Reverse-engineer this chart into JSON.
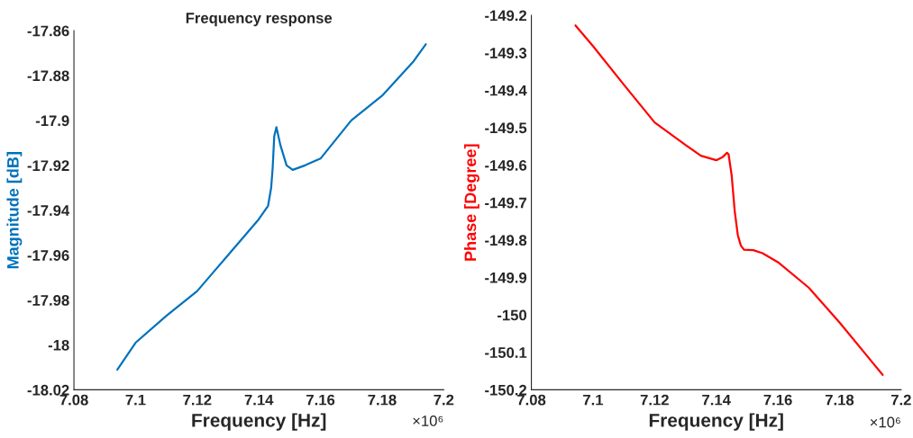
{
  "chart_data": [
    {
      "type": "line",
      "title": "Frequency response",
      "xlabel": "Frequency [Hz]",
      "ylabel": "Magnitude [dB]",
      "xlim": [
        7.08,
        7.2
      ],
      "xticks": [
        7.08,
        7.1,
        7.12,
        7.14,
        7.16,
        7.18,
        7.2
      ],
      "ylim": [
        -18.02,
        -17.86
      ],
      "yticks": [
        -18.02,
        -18,
        -17.98,
        -17.96,
        -17.94,
        -17.92,
        -17.9,
        -17.88,
        -17.86
      ],
      "grid": false,
      "annotations": [
        "×10⁶"
      ],
      "series": [
        {
          "color": "#0072bd",
          "x": [
            7.0941,
            7.1,
            7.11,
            7.12,
            7.125,
            7.13,
            7.135,
            7.14,
            7.143,
            7.144,
            7.1445,
            7.145,
            7.1457,
            7.147,
            7.149,
            7.151,
            7.155,
            7.16,
            7.17,
            7.18,
            7.19,
            7.1942
          ],
          "values": [
            -18.011,
            -17.999,
            -17.987,
            -17.976,
            -17.968,
            -17.96,
            -17.952,
            -17.944,
            -17.938,
            -17.93,
            -17.921,
            -17.907,
            -17.903,
            -17.911,
            -17.92,
            -17.922,
            -17.92,
            -17.917,
            -17.9,
            -17.889,
            -17.874,
            -17.866
          ]
        }
      ]
    },
    {
      "type": "line",
      "xlabel": "Frequency [Hz]",
      "ylabel": "Phase [Degree]",
      "xlim": [
        7.08,
        7.2
      ],
      "xticks": [
        7.08,
        7.1,
        7.12,
        7.14,
        7.16,
        7.18,
        7.2
      ],
      "ylim": [
        -150.2,
        -149.2
      ],
      "yticks": [
        -150.2,
        -150.1,
        -150,
        -149.9,
        -149.8,
        -149.7,
        -149.6,
        -149.5,
        -149.4,
        -149.3,
        -149.2
      ],
      "grid": false,
      "annotations": [
        "×10⁶"
      ],
      "series": [
        {
          "color": "#ff0000",
          "x": [
            7.0943,
            7.1,
            7.11,
            7.12,
            7.13,
            7.135,
            7.14,
            7.142,
            7.1435,
            7.144,
            7.145,
            7.146,
            7.147,
            7.148,
            7.149,
            7.152,
            7.155,
            7.16,
            7.17,
            7.18,
            7.19,
            7.194
          ],
          "values": [
            -149.227,
            -149.282,
            -149.385,
            -149.486,
            -149.546,
            -149.575,
            -149.587,
            -149.579,
            -149.567,
            -149.571,
            -149.627,
            -149.723,
            -149.787,
            -149.815,
            -149.826,
            -149.827,
            -149.835,
            -149.859,
            -149.927,
            -150.02,
            -150.12,
            -150.16
          ]
        }
      ]
    }
  ]
}
